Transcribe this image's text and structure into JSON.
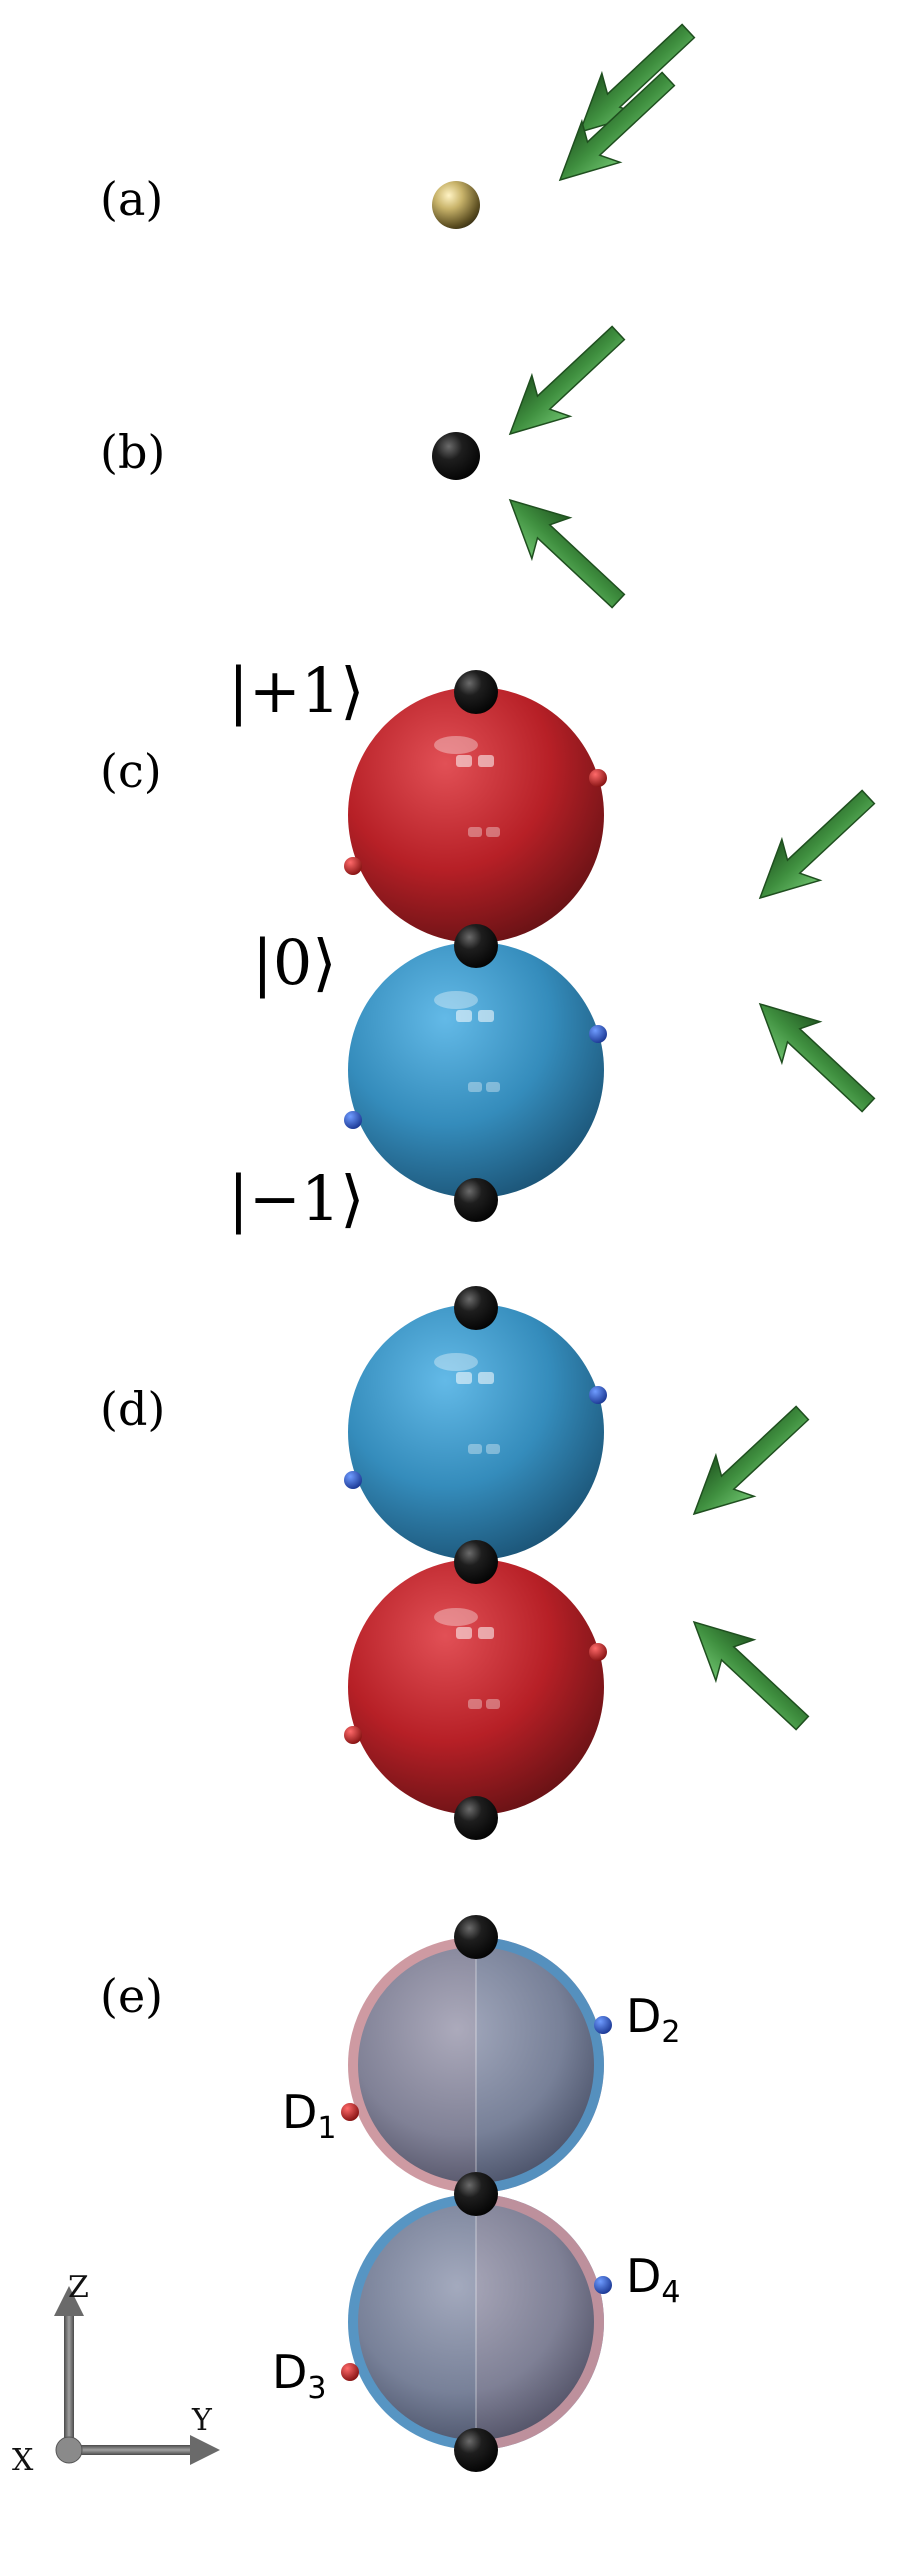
{
  "panels": {
    "a": {
      "label": "(a)"
    },
    "b": {
      "label": "(b)"
    },
    "c": {
      "label": "(c)",
      "kets": [
        "|+1⟩",
        "|0⟩",
        "|−1⟩"
      ]
    },
    "d": {
      "label": "(d)"
    },
    "e": {
      "label": "(e)",
      "detectors": [
        {
          "main": "D",
          "sub": "1"
        },
        {
          "main": "D",
          "sub": "2"
        },
        {
          "main": "D",
          "sub": "3"
        },
        {
          "main": "D",
          "sub": "4"
        }
      ]
    }
  },
  "axes": {
    "z": "Z",
    "y": "Y",
    "x": "X"
  },
  "colors": {
    "arrow": "#3f8f3f",
    "red_sphere": "#b3141b",
    "blue_sphere": "#2a86b8",
    "grey_sphere": "#7a7f95",
    "gold_atom": "#8c7a3a",
    "black_atom": "#0d0d0d"
  }
}
